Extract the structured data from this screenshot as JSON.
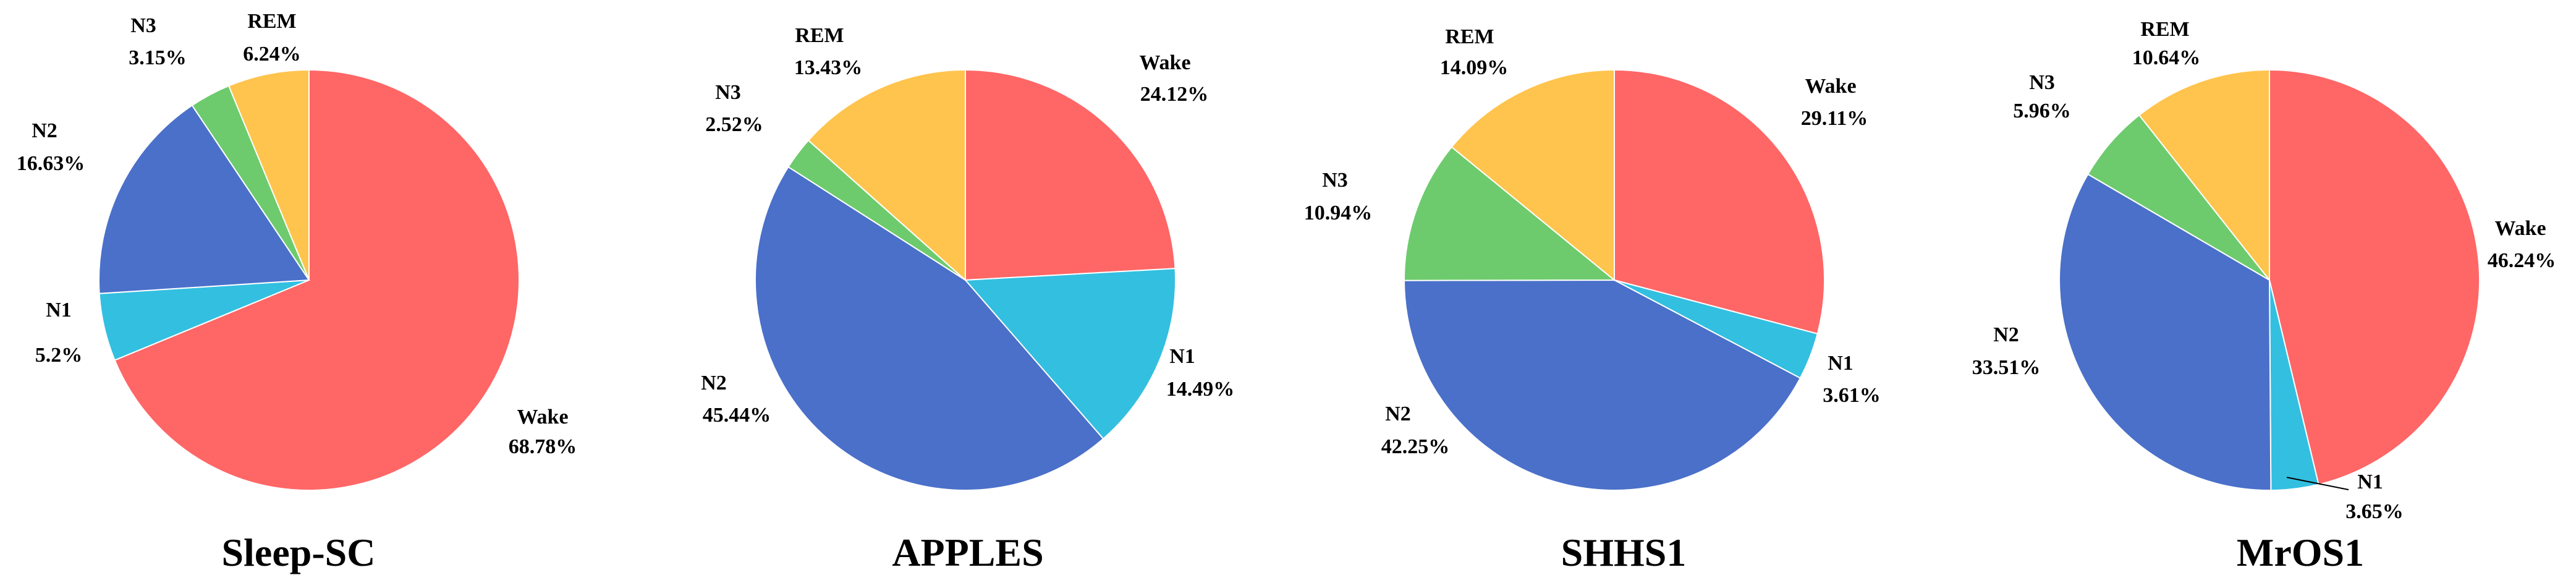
{
  "colors": {
    "Wake": "#FF6666",
    "N1": "#33BFE0",
    "N2": "#4A70C9",
    "N3": "#6DCB6D",
    "REM": "#FFC44D"
  },
  "chart_data": [
    {
      "type": "pie",
      "title": "Sleep-SC",
      "slices": [
        {
          "label": "Wake",
          "value": 68.78,
          "text": "68.78%"
        },
        {
          "label": "N1",
          "value": 5.2,
          "text": "5.2%"
        },
        {
          "label": "N2",
          "value": 16.63,
          "text": "16.63%"
        },
        {
          "label": "N3",
          "value": 3.15,
          "text": "3.15%"
        },
        {
          "label": "REM",
          "value": 6.24,
          "text": "6.24%"
        }
      ]
    },
    {
      "type": "pie",
      "title": "APPLES",
      "slices": [
        {
          "label": "Wake",
          "value": 24.12,
          "text": "24.12%"
        },
        {
          "label": "N1",
          "value": 14.49,
          "text": "14.49%"
        },
        {
          "label": "N2",
          "value": 45.44,
          "text": "45.44%"
        },
        {
          "label": "N3",
          "value": 2.52,
          "text": "2.52%"
        },
        {
          "label": "REM",
          "value": 13.43,
          "text": "13.43%"
        }
      ]
    },
    {
      "type": "pie",
      "title": "SHHS1",
      "slices": [
        {
          "label": "Wake",
          "value": 29.11,
          "text": "29.11%"
        },
        {
          "label": "N1",
          "value": 3.61,
          "text": "3.61%"
        },
        {
          "label": "N2",
          "value": 42.25,
          "text": "42.25%"
        },
        {
          "label": "N3",
          "value": 10.94,
          "text": "10.94%"
        },
        {
          "label": "REM",
          "value": 14.09,
          "text": "14.09%"
        }
      ]
    },
    {
      "type": "pie",
      "title": "MrOS1",
      "slices": [
        {
          "label": "Wake",
          "value": 46.24,
          "text": "46.24%"
        },
        {
          "label": "N1",
          "value": 3.65,
          "text": "3.65%"
        },
        {
          "label": "N2",
          "value": 33.51,
          "text": "33.51%"
        },
        {
          "label": "N3",
          "value": 5.96,
          "text": "5.96%"
        },
        {
          "label": "REM",
          "value": 10.64,
          "text": "10.64%"
        }
      ]
    }
  ]
}
